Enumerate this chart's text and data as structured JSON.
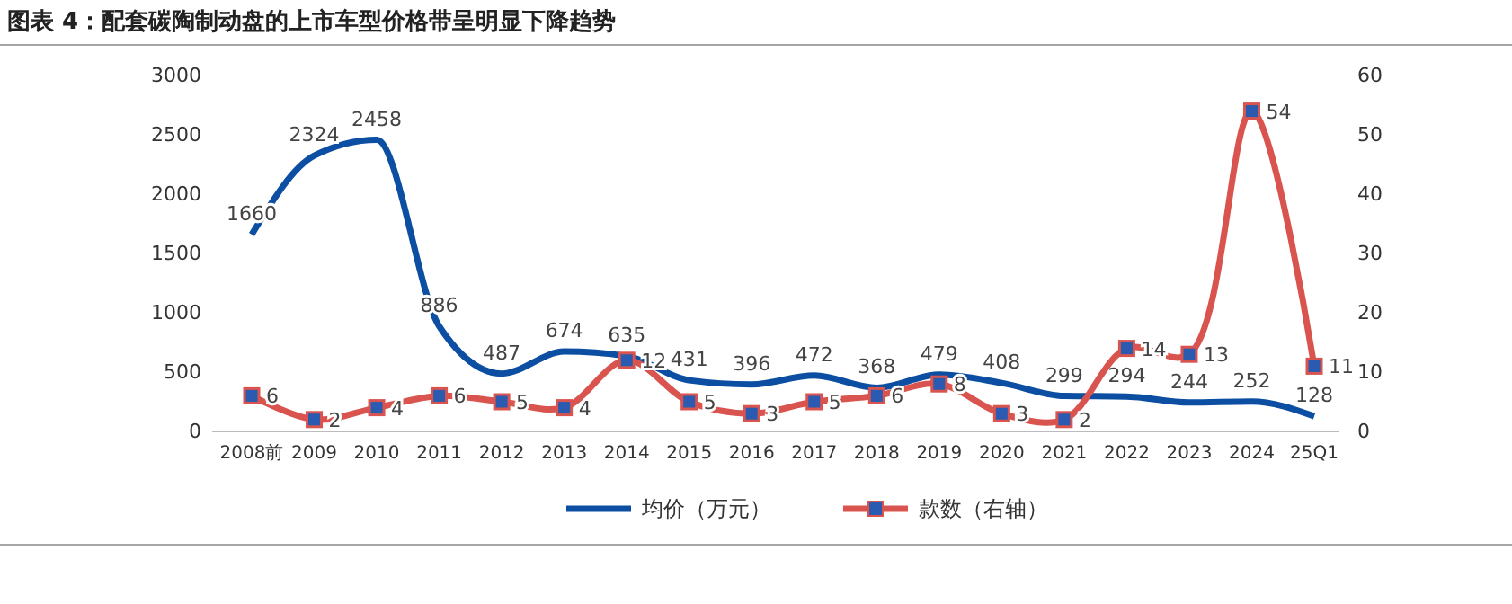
{
  "chart_data": {
    "type": "line",
    "title": "图表 4：配套碳陶制动盘的上市车型价格带呈明显下降趋势",
    "categories": [
      "2008前",
      "2009",
      "2010",
      "2011",
      "2012",
      "2013",
      "2014",
      "2015",
      "2016",
      "2017",
      "2018",
      "2019",
      "2020",
      "2021",
      "2022",
      "2023",
      "2024",
      "25Q1"
    ],
    "series": [
      {
        "name": "均价（万元）",
        "color": "#0b4ea2",
        "marker": "none",
        "values": [
          1660,
          2324,
          2458,
          886,
          487,
          674,
          635,
          431,
          396,
          472,
          368,
          479,
          408,
          299,
          294,
          244,
          252,
          128
        ]
      },
      {
        "name": "款数（右轴）",
        "color": "#d9544f",
        "marker": "square",
        "axis": "y2",
        "values": [
          6,
          2,
          4,
          6,
          5,
          4,
          12,
          5,
          3,
          5,
          6,
          8,
          3,
          2,
          14,
          13,
          54,
          11
        ]
      }
    ],
    "ylim": [
      0,
      3000
    ],
    "yticks": [
      0,
      500,
      1000,
      1500,
      2000,
      2500,
      3000
    ],
    "y2lim": [
      0,
      60
    ],
    "y2ticks": [
      0,
      10,
      20,
      30,
      40,
      50,
      60
    ],
    "data_labels": true,
    "legend": "bottom",
    "grid": false
  }
}
